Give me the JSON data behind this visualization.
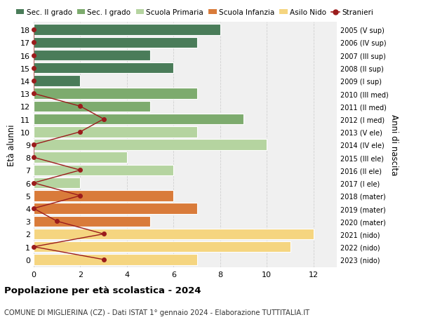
{
  "ages": [
    18,
    17,
    16,
    15,
    14,
    13,
    12,
    11,
    10,
    9,
    8,
    7,
    6,
    5,
    4,
    3,
    2,
    1,
    0
  ],
  "right_labels": [
    "2005 (V sup)",
    "2006 (IV sup)",
    "2007 (III sup)",
    "2008 (II sup)",
    "2009 (I sup)",
    "2010 (III med)",
    "2011 (II med)",
    "2012 (I med)",
    "2013 (V ele)",
    "2014 (IV ele)",
    "2015 (III ele)",
    "2016 (II ele)",
    "2017 (I ele)",
    "2018 (mater)",
    "2019 (mater)",
    "2020 (mater)",
    "2021 (nido)",
    "2022 (nido)",
    "2023 (nido)"
  ],
  "bar_values": [
    8,
    7,
    5,
    6,
    2,
    7,
    5,
    9,
    7,
    10,
    4,
    6,
    2,
    6,
    7,
    5,
    12,
    11,
    7
  ],
  "bar_colors": [
    "#4a7c59",
    "#4a7c59",
    "#4a7c59",
    "#4a7c59",
    "#4a7c59",
    "#7dab6e",
    "#7dab6e",
    "#7dab6e",
    "#b5d4a0",
    "#b5d4a0",
    "#b5d4a0",
    "#b5d4a0",
    "#b5d4a0",
    "#d97b3a",
    "#d97b3a",
    "#d97b3a",
    "#f5d580",
    "#f5d580",
    "#f5d580"
  ],
  "stranieri_x": [
    0,
    0,
    0,
    0,
    0,
    0,
    2,
    3,
    2,
    0,
    0,
    2,
    0,
    2,
    0,
    1,
    3,
    0,
    3
  ],
  "stranieri_line_color": "#9b1c1c",
  "legend_labels": [
    "Sec. II grado",
    "Sec. I grado",
    "Scuola Primaria",
    "Scuola Infanzia",
    "Asilo Nido",
    "Stranieri"
  ],
  "legend_colors": [
    "#4a7c59",
    "#7dab6e",
    "#b5d4a0",
    "#d97b3a",
    "#f5d580",
    "#9b1c1c"
  ],
  "ylabel": "Età alunni",
  "right_ylabel": "Anni di nascita",
  "title": "Popolazione per età scolastica - 2024",
  "subtitle": "COMUNE DI MIGLIERINA (CZ) - Dati ISTAT 1° gennaio 2024 - Elaborazione TUTTITALIA.IT",
  "xlim": [
    0,
    13
  ],
  "xticks": [
    0,
    2,
    4,
    6,
    8,
    10,
    12
  ],
  "bg_color": "#f0f0f0",
  "bar_height": 0.85,
  "grid_color": "#d0d0d0",
  "white": "#ffffff"
}
